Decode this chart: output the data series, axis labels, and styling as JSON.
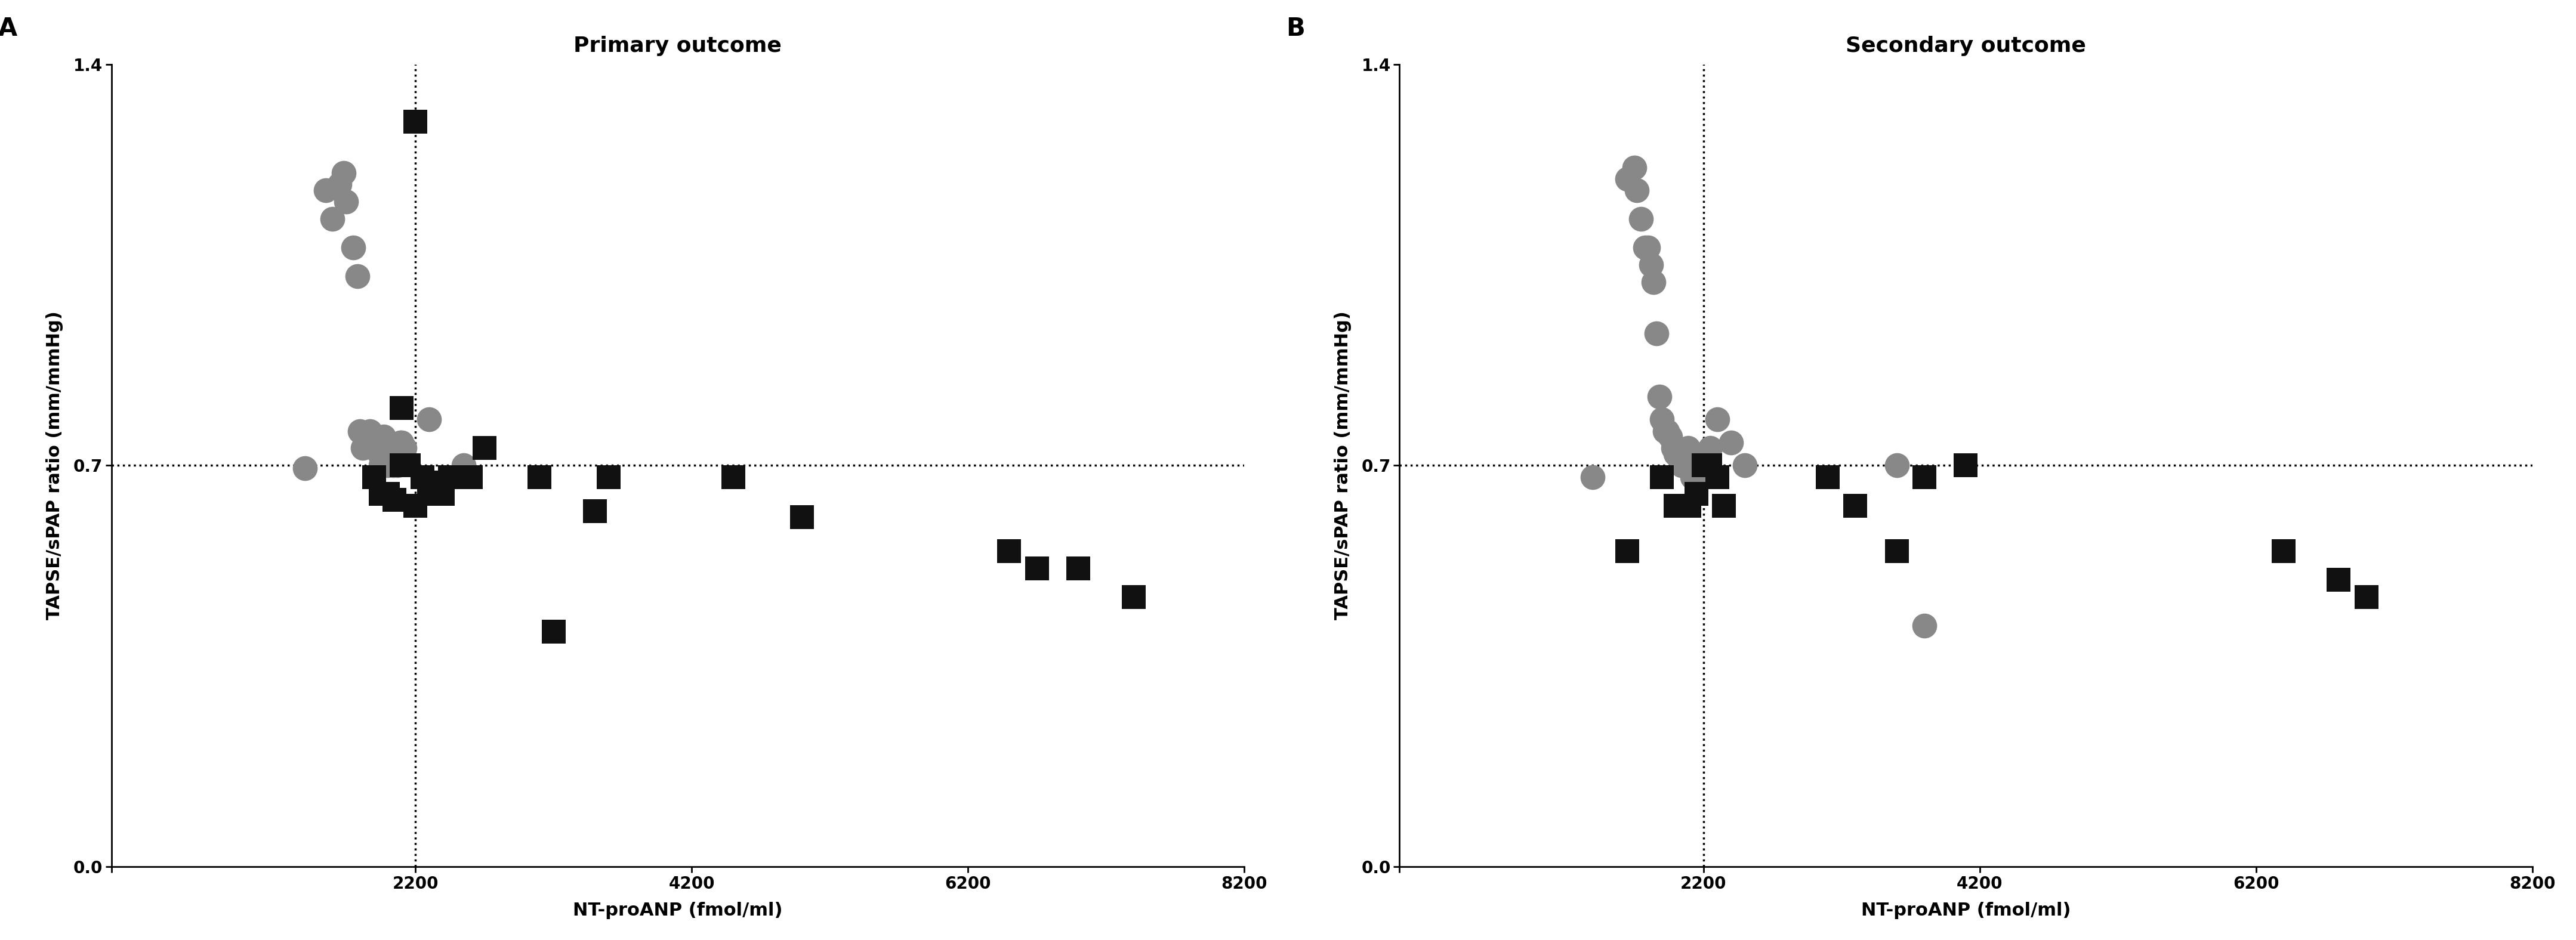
{
  "panel_A_title": "Primary outcome",
  "panel_B_title": "Secondary outcome",
  "panel_label_A": "A",
  "panel_label_B": "B",
  "xlabel": "NT-proANP (fmol/ml)",
  "ylabel": "TAPSE/sPAP ratio (mm/mmHg)",
  "xlim": [
    0,
    8200
  ],
  "ylim": [
    0.0,
    1.4
  ],
  "xticks": [
    0,
    2200,
    4200,
    6200,
    8200
  ],
  "yticks": [
    0.0,
    0.7,
    1.4
  ],
  "xticklabels": [
    "",
    "2200",
    "4200",
    "6200",
    "8200"
  ],
  "yticklabels": [
    "0.0",
    "0.7",
    "1.4"
  ],
  "hline": 0.7,
  "vline": 2200,
  "circle_color": "#888888",
  "square_color": "#111111",
  "bg_color": "#ffffff",
  "panel_A_circles_x": [
    1400,
    1550,
    1600,
    1650,
    1680,
    1700,
    1750,
    1780,
    1800,
    1820,
    1850,
    1870,
    1880,
    1900,
    1920,
    1940,
    1950,
    1960,
    1970,
    1980,
    2000,
    2010,
    2020,
    2030,
    2040,
    2050,
    2070,
    2090,
    2100,
    2120,
    2300,
    2550
  ],
  "panel_A_circles_y": [
    0.695,
    1.18,
    1.13,
    1.19,
    1.21,
    1.16,
    1.08,
    1.03,
    0.76,
    0.73,
    0.74,
    0.76,
    0.74,
    0.73,
    0.73,
    0.72,
    0.7,
    0.73,
    0.75,
    0.73,
    0.7,
    0.72,
    0.71,
    0.73,
    0.7,
    0.72,
    0.7,
    0.74,
    0.74,
    0.73,
    0.78,
    0.7
  ],
  "panel_A_squares_x": [
    1900,
    1950,
    2000,
    2050,
    2100,
    2150,
    2200,
    2200,
    2250,
    2300,
    2350,
    2400,
    2450,
    2500,
    2600,
    2700,
    3100,
    3200,
    3500,
    3600,
    4500,
    5000,
    6500,
    6700,
    7000,
    7400,
    2100
  ],
  "panel_A_squares_y": [
    0.68,
    0.65,
    0.65,
    0.64,
    0.7,
    0.7,
    1.3,
    0.63,
    0.68,
    0.67,
    0.65,
    0.65,
    0.68,
    0.68,
    0.68,
    0.73,
    0.68,
    0.41,
    0.62,
    0.68,
    0.68,
    0.61,
    0.55,
    0.52,
    0.52,
    0.47,
    0.8
  ],
  "panel_B_circles_x": [
    1400,
    1650,
    1700,
    1720,
    1750,
    1780,
    1800,
    1820,
    1840,
    1860,
    1880,
    1900,
    1920,
    1940,
    1960,
    1980,
    2000,
    2020,
    2040,
    2060,
    2070,
    2080,
    2090,
    2100,
    2120,
    2140,
    2160,
    2200,
    2250,
    2300,
    2400,
    2500,
    3600,
    3800
  ],
  "panel_B_circles_y": [
    0.68,
    1.2,
    1.22,
    1.18,
    1.13,
    1.08,
    1.08,
    1.05,
    1.02,
    0.93,
    0.82,
    0.78,
    0.76,
    0.76,
    0.75,
    0.73,
    0.72,
    0.72,
    0.7,
    0.72,
    0.71,
    0.7,
    0.73,
    0.7,
    0.68,
    0.68,
    0.7,
    0.68,
    0.73,
    0.78,
    0.74,
    0.7,
    0.7,
    0.42
  ],
  "panel_B_squares_x": [
    1650,
    1900,
    2000,
    2100,
    2150,
    2200,
    2230,
    2250,
    2300,
    2350,
    3100,
    3300,
    3600,
    3800,
    4100,
    6400,
    6800,
    7000
  ],
  "panel_B_squares_y": [
    0.55,
    0.68,
    0.63,
    0.63,
    0.65,
    0.7,
    0.7,
    0.7,
    0.68,
    0.63,
    0.68,
    0.63,
    0.55,
    0.68,
    0.7,
    0.55,
    0.5,
    0.47
  ],
  "marker_size_circles": 900,
  "marker_size_squares": 800,
  "dotted_linewidth": 2.5,
  "title_fontsize": 26,
  "label_fontsize": 22,
  "tick_fontsize": 20,
  "panel_label_fontsize": 30,
  "spine_linewidth": 2.0
}
